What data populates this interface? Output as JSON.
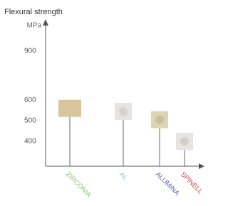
{
  "chart_data": {
    "type": "tile",
    "title": "Flexural strength",
    "y_label": "MPa",
    "categories": [
      "ZIRCONIA",
      "AL",
      "ALUMINA",
      "SPINELL"
    ],
    "values": [
      560,
      545,
      505,
      400
    ],
    "label_colors": [
      "#8cc46a",
      "#9cc0e0",
      "#5a5fc0",
      "#d04a58"
    ],
    "tile_colors": [
      "#d9c59d",
      "#e6e4e0",
      "#ddd4b4",
      "#e8e5e0"
    ],
    "dot_colors": [
      "#d9c59d",
      "#d2d0cc",
      "#c9bd94",
      "#cfccc6"
    ],
    "ylim": [
      280,
      1000
    ],
    "yticks": [
      400,
      500,
      600,
      900
    ]
  }
}
